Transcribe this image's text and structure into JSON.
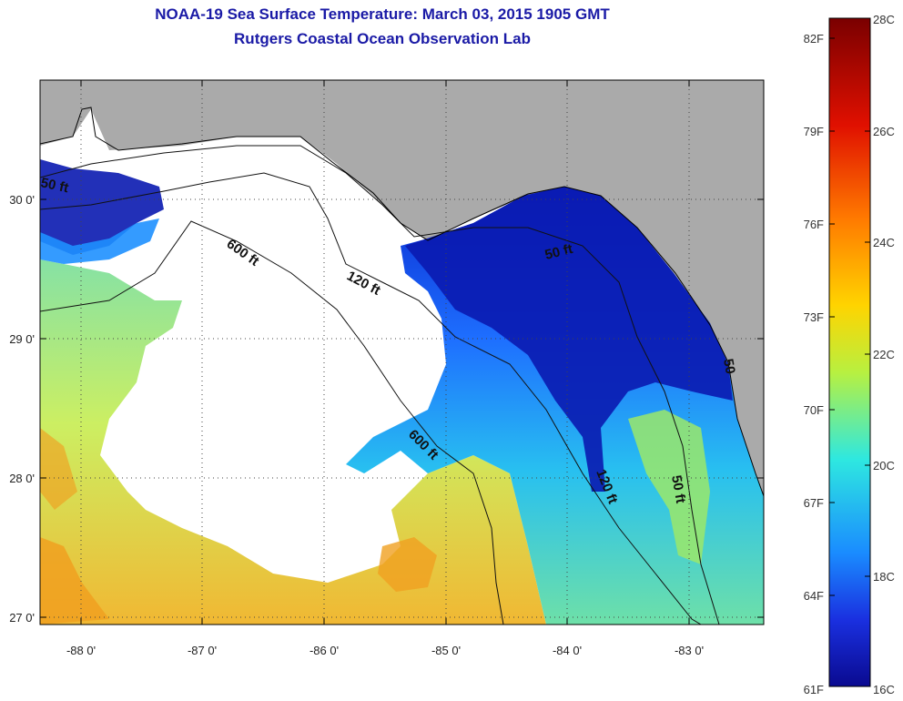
{
  "title": "NOAA-19 Sea Surface Temperature:  March 03, 2015 1905 GMT",
  "subtitle": "Rutgers Coastal Ocean Observation Lab",
  "x_ticks": [
    "-88 0'",
    "-87 0'",
    "-86 0'",
    "-85 0'",
    "-84 0'",
    "-83 0'"
  ],
  "y_ticks": [
    "30 0'",
    "29 0'",
    "28 0'",
    "27 0'"
  ],
  "contour_labels": {
    "c600a": "600 ft",
    "c120a": "120 ft",
    "c50a": "50 ft",
    "c600b": "600 ft",
    "c120b": "120 ft",
    "c50b": "50 ft",
    "c50c": "50 ft",
    "c50d": "50"
  },
  "colorbar": {
    "fahrenheit": [
      "82F",
      "79F",
      "76F",
      "73F",
      "70F",
      "67F",
      "64F",
      "61F"
    ],
    "celsius": [
      "28C",
      "26C",
      "24C",
      "22C",
      "20C",
      "18C",
      "16C"
    ],
    "stops": [
      "#7a0000",
      "#e01000",
      "#ff7a00",
      "#ffd400",
      "#b8f040",
      "#2ee8e0",
      "#1a8cff",
      "#1a30e0",
      "#0a0a90"
    ]
  },
  "colors": {
    "land": "#aaaaaa",
    "no_data": "#ffffff",
    "title": "#1a1aa6",
    "cold": "#0a1ab0",
    "mid": "#1e90ff",
    "warm": "#9be86a",
    "hot": "#f0a020"
  }
}
